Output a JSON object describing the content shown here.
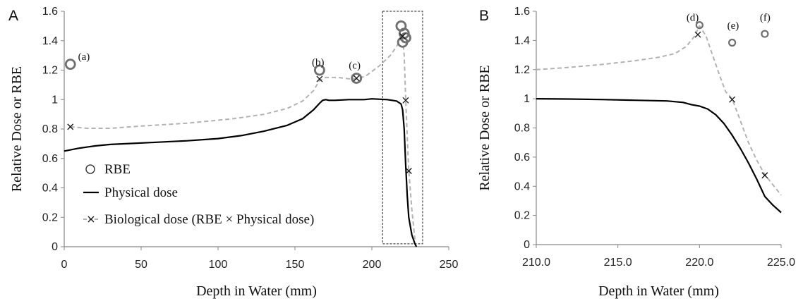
{
  "chart_data": [
    {
      "panel_label": "A",
      "type": "line",
      "xlabel": "Depth in Water (mm)",
      "ylabel": "Relative Dose or RBE",
      "xlim": [
        0,
        250
      ],
      "ylim": [
        0,
        1.6
      ],
      "xticks": [
        0,
        50,
        100,
        150,
        200,
        250
      ],
      "xtick_labels": [
        "0",
        "50",
        "100",
        "150",
        "200",
        "250"
      ],
      "yticks": [
        0,
        0.2,
        0.4,
        0.6,
        0.8,
        1,
        1.2,
        1.4,
        1.6
      ],
      "ytick_labels": [
        "0",
        "0.2",
        "0.4",
        "0.6",
        "0.8",
        "1",
        "1.2",
        "1.4",
        "1.6"
      ],
      "grid": false,
      "legend_position": "bottom-left",
      "legend": [
        "RBE",
        "Physical dose",
        "Biological dose (RBE × Physical dose)"
      ],
      "series": [
        {
          "name": "Physical dose",
          "style": "solid",
          "color": "#000000",
          "x": [
            0,
            10,
            20,
            30,
            40,
            60,
            80,
            100,
            115,
            130,
            145,
            155,
            162,
            166,
            168,
            170,
            172,
            176,
            185,
            195,
            200,
            210,
            216,
            219,
            220,
            221,
            222,
            223,
            224,
            226,
            228,
            229
          ],
          "y": [
            0.65,
            0.67,
            0.685,
            0.695,
            0.7,
            0.71,
            0.72,
            0.735,
            0.755,
            0.785,
            0.825,
            0.87,
            0.93,
            0.975,
            0.995,
            1.0,
            0.995,
            0.995,
            1.0,
            1.0,
            1.005,
            1.0,
            0.99,
            0.97,
            0.93,
            0.8,
            0.55,
            0.35,
            0.2,
            0.08,
            0.02,
            0.0
          ]
        },
        {
          "name": "Biological dose (RBE × Physical dose)",
          "style": "dashed",
          "color": "#b3b3b3",
          "x": [
            4,
            15,
            30,
            50,
            80,
            110,
            130,
            145,
            155,
            162,
            166,
            170,
            178,
            186,
            190,
            196,
            205,
            212,
            216,
            218,
            220,
            221,
            222,
            223,
            224,
            226,
            228
          ],
          "y": [
            0.815,
            0.805,
            0.805,
            0.82,
            0.84,
            0.87,
            0.9,
            0.94,
            0.99,
            1.06,
            1.13,
            1.15,
            1.15,
            1.14,
            1.14,
            1.16,
            1.23,
            1.3,
            1.36,
            1.4,
            1.43,
            1.3,
            1.0,
            0.75,
            0.52,
            0.25,
            0.05
          ]
        }
      ],
      "bio_markers": {
        "x": [
          4,
          166,
          190,
          220,
          222,
          224
        ],
        "y": [
          0.815,
          1.14,
          1.145,
          1.43,
          0.995,
          0.515
        ]
      },
      "rbe_points": {
        "x": [
          4,
          166,
          190,
          219,
          220,
          221,
          222
        ],
        "y": [
          1.24,
          1.2,
          1.145,
          1.5,
          1.39,
          1.45,
          1.42
        ]
      },
      "annotations": [
        {
          "text": "(a)",
          "x": 9,
          "y": 1.27
        },
        {
          "text": "(b)",
          "x": 161,
          "y": 1.23
        },
        {
          "text": "(c)",
          "x": 185,
          "y": 1.21
        }
      ],
      "highlight_box": {
        "x0": 207,
        "x1": 233,
        "y0": 0.02,
        "y1": 1.6
      }
    },
    {
      "panel_label": "B",
      "type": "line",
      "xlabel": "Depth in Water (mm)",
      "ylabel": "Relative Dose or RBE",
      "xlim": [
        210,
        225
      ],
      "ylim": [
        0,
        1.6
      ],
      "xticks": [
        210,
        215,
        220,
        225
      ],
      "xtick_labels": [
        "210.0",
        "215.0",
        "220.0",
        "225.0"
      ],
      "yticks": [
        0,
        0.2,
        0.4,
        0.6,
        0.8,
        1,
        1.2,
        1.4,
        1.6
      ],
      "ytick_labels": [
        "0",
        "0.2",
        "0.4",
        "0.6",
        "0.8",
        "1",
        "1.2",
        "1.4",
        "1.6"
      ],
      "grid": false,
      "series": [
        {
          "name": "Physical dose",
          "style": "solid",
          "color": "#000000",
          "x": [
            210,
            212,
            214,
            216,
            218,
            219,
            219.5,
            220,
            220.5,
            221,
            221.5,
            222,
            222.5,
            223,
            223.5,
            224,
            224.5,
            225
          ],
          "y": [
            1.0,
            0.998,
            0.995,
            0.99,
            0.985,
            0.975,
            0.96,
            0.95,
            0.93,
            0.89,
            0.83,
            0.75,
            0.66,
            0.56,
            0.45,
            0.33,
            0.27,
            0.22
          ]
        },
        {
          "name": "Biological dose (RBE × Physical dose)",
          "style": "dashed",
          "color": "#b3b3b3",
          "x": [
            210,
            212,
            214,
            216,
            217.5,
            218.5,
            219.2,
            219.7,
            220,
            220.4,
            220.8,
            221.2,
            221.6,
            222,
            222.5,
            223,
            223.5,
            224,
            224.5,
            225
          ],
          "y": [
            1.2,
            1.215,
            1.235,
            1.26,
            1.285,
            1.31,
            1.36,
            1.43,
            1.5,
            1.43,
            1.3,
            1.17,
            1.05,
            1.0,
            0.85,
            0.7,
            0.58,
            0.48,
            0.41,
            0.34
          ]
        }
      ],
      "bio_markers": {
        "x": [
          219.9,
          222,
          224
        ],
        "y": [
          1.44,
          0.995,
          0.475
        ]
      },
      "rbe_points": {
        "x": [
          220,
          222,
          224
        ],
        "y": [
          1.505,
          1.385,
          1.445
        ]
      },
      "annotations": [
        {
          "text": "(d)",
          "x": 219.2,
          "y": 1.535
        },
        {
          "text": "(e)",
          "x": 221.7,
          "y": 1.48
        },
        {
          "text": "(f)",
          "x": 223.7,
          "y": 1.535
        }
      ]
    }
  ]
}
